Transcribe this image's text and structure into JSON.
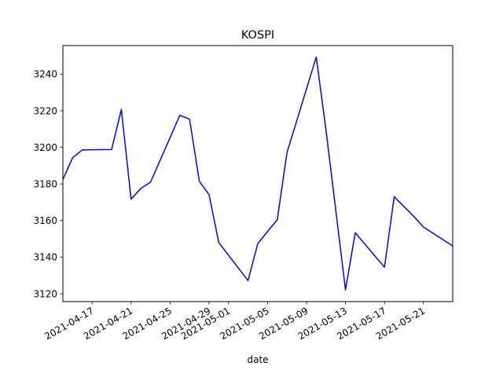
{
  "chart_data": {
    "type": "line",
    "title": "KOSPI",
    "xlabel": "date",
    "ylabel": "",
    "ylim": [
      3115.7,
      3255.6
    ],
    "xlim": [
      "2021-04-14",
      "2021-05-24"
    ],
    "grid": false,
    "legend": "none",
    "x_ticks": [
      "2021-04-17",
      "2021-04-21",
      "2021-04-25",
      "2021-04-29",
      "2021-05-01",
      "2021-05-05",
      "2021-05-09",
      "2021-05-13",
      "2021-05-17",
      "2021-05-21"
    ],
    "y_ticks": [
      3120,
      3140,
      3160,
      3180,
      3200,
      3220,
      3240
    ],
    "series": [
      {
        "color": "#0000ff",
        "x": [
          "2021-04-14",
          "2021-04-15",
          "2021-04-16",
          "2021-04-19",
          "2021-04-20",
          "2021-04-21",
          "2021-04-22",
          "2021-04-23",
          "2021-04-26",
          "2021-04-27",
          "2021-04-28",
          "2021-04-29",
          "2021-04-30",
          "2021-05-03",
          "2021-05-04",
          "2021-05-06",
          "2021-05-07",
          "2021-05-10",
          "2021-05-11",
          "2021-05-13",
          "2021-05-14",
          "2021-05-17",
          "2021-05-18",
          "2021-05-20",
          "2021-05-21",
          "2021-05-24"
        ],
        "values": [
          3182.4,
          3194.3,
          3198.6,
          3198.8,
          3220.7,
          3171.7,
          3177.5,
          3181.0,
          3217.5,
          3215.4,
          3181.5,
          3174.1,
          3147.9,
          3127.2,
          3147.4,
          3160.5,
          3197.2,
          3249.3,
          3209.4,
          3122.1,
          3153.3,
          3134.5,
          3173.0,
          3162.3,
          3156.4,
          3146.1
        ]
      }
    ]
  }
}
